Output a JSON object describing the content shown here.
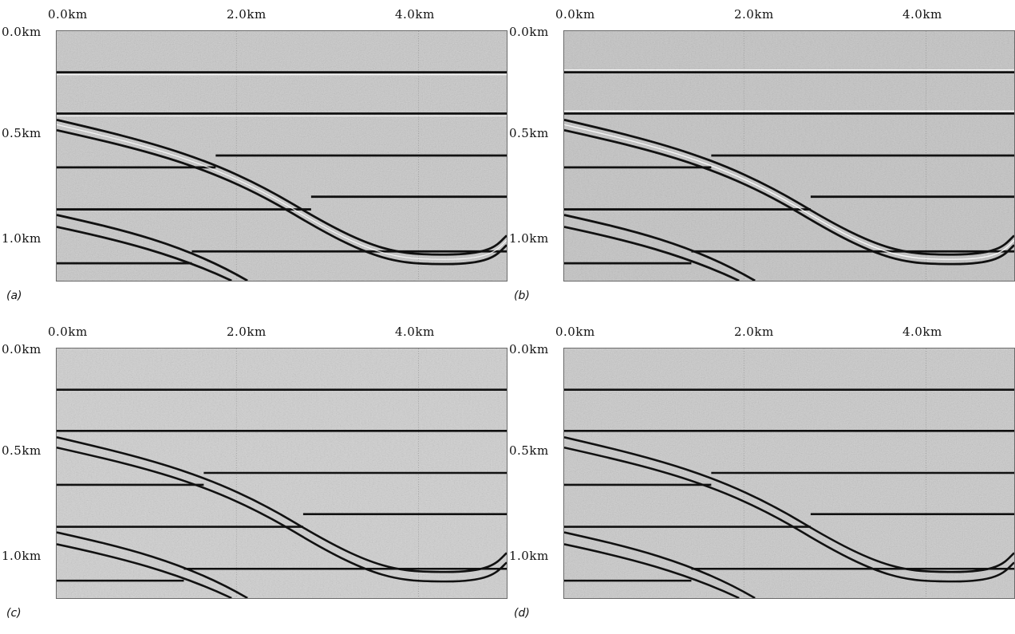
{
  "panels": [
    {
      "label": "(a)",
      "x_ticks": [
        "0.0km",
        "2.0km",
        "4.0km"
      ],
      "y_ticks": [
        "0.0km",
        "0.5km",
        "1.0km"
      ]
    },
    {
      "label": "(b)",
      "x_ticks": [
        "0.0km",
        "2.0km",
        "4.0km"
      ],
      "y_ticks": [
        "0.0km",
        "0.5km",
        "1.0km"
      ]
    },
    {
      "label": "(c)",
      "x_ticks": [
        "0.0km",
        "2.0km",
        "4.0km"
      ],
      "y_ticks": [
        "0.0km",
        "0.5km",
        "1.0km"
      ]
    },
    {
      "label": "(d)",
      "x_ticks": [
        "0.0km",
        "2.0km",
        "4.0km"
      ],
      "y_ticks": [
        "0.0km",
        "0.5km",
        "1.0km"
      ]
    }
  ],
  "colors": {
    "background_gray": "#c9c9c9",
    "reflector": "#111111"
  }
}
